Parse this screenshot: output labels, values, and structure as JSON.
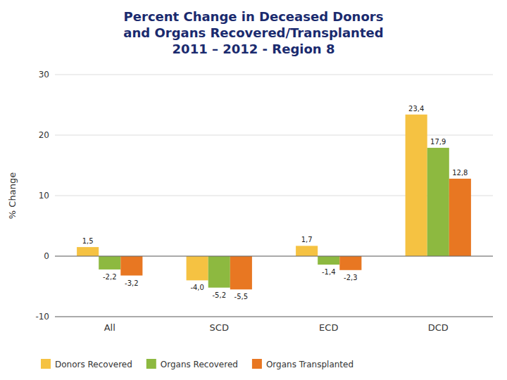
{
  "chart_data": {
    "type": "bar",
    "title": "Percent Change in Deceased Donors\nand Organs Recovered/Transplanted\n2011 – 2012 - Region 8",
    "categories": [
      "All",
      "SCD",
      "ECD",
      "DCD"
    ],
    "series": [
      {
        "name": "Donors Recovered",
        "color": "#F5C242",
        "values": [
          1.5,
          -4.0,
          1.7,
          23.4
        ],
        "value_labels": [
          "1,5",
          "-4,0",
          "1,7",
          "23,4"
        ]
      },
      {
        "name": "Organs Recovered",
        "color": "#8DB940",
        "values": [
          -2.2,
          -5.2,
          -1.4,
          17.9
        ],
        "value_labels": [
          "-2,2",
          "-5,2",
          "-1,4",
          "17,9"
        ]
      },
      {
        "name": "Organs Transplanted",
        "color": "#E87722",
        "values": [
          -3.2,
          -5.5,
          -2.3,
          12.8
        ],
        "value_labels": [
          "-3,2",
          "-5,5",
          "-2,3",
          "12,8"
        ]
      }
    ],
    "ylabel": "% Change",
    "ylim": [
      -10,
      30
    ],
    "yticks": [
      -10,
      0,
      10,
      20,
      30
    ],
    "grid": true,
    "data_labels": true,
    "legend": "bottom-left"
  }
}
